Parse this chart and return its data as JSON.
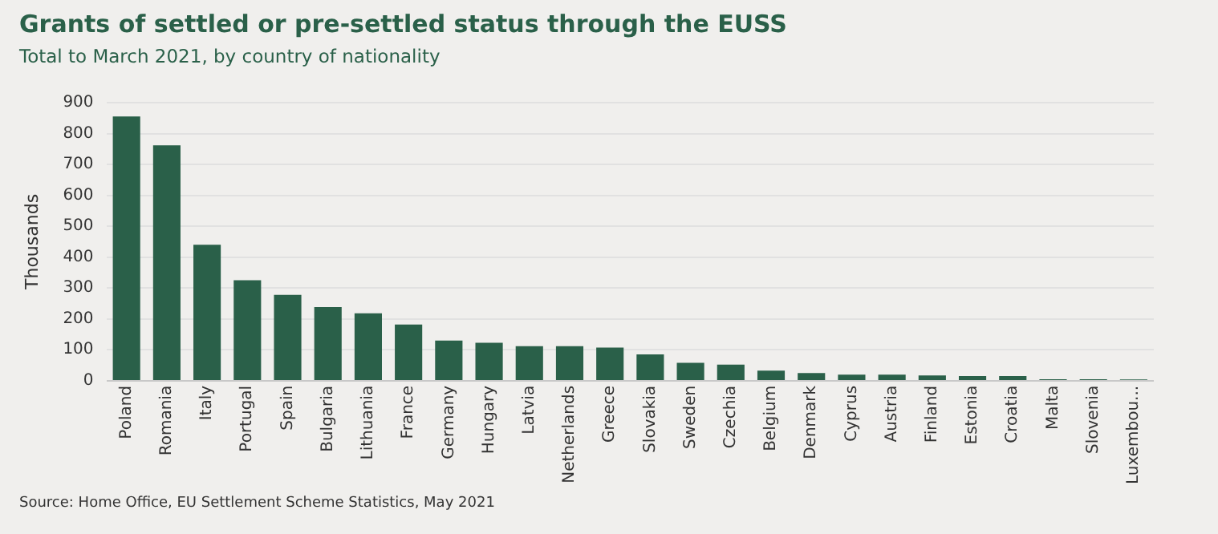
{
  "chart_data": {
    "type": "bar",
    "title": "Grants of settled or pre-settled status through the EUSS",
    "subtitle": "Total to March 2021, by country of nationality",
    "ylabel": "Thousands",
    "categories": [
      "Poland",
      "Romania",
      "Italy",
      "Portugal",
      "Spain",
      "Bulgaria",
      "Lithuania",
      "France",
      "Germany",
      "Hungary",
      "Latvia",
      "Netherlands",
      "Greece",
      "Slovakia",
      "Sweden",
      "Czechia",
      "Belgium",
      "Denmark",
      "Cyprus",
      "Austria",
      "Finland",
      "Estonia",
      "Croatia",
      "Malta",
      "Slovenia",
      "Luxembou..."
    ],
    "values": [
      855,
      762,
      440,
      325,
      278,
      238,
      218,
      182,
      130,
      123,
      112,
      112,
      107,
      85,
      58,
      52,
      33,
      25,
      20,
      20,
      17,
      15,
      15,
      5,
      5,
      4
    ],
    "color": "#2a6049",
    "ylim": [
      0,
      900
    ],
    "yticks": [
      0,
      100,
      200,
      300,
      400,
      500,
      600,
      700,
      800,
      900
    ],
    "grid": "y",
    "annotations": [
      "Source: Home Office, EU Settlement Scheme Statistics, May 2021"
    ]
  }
}
